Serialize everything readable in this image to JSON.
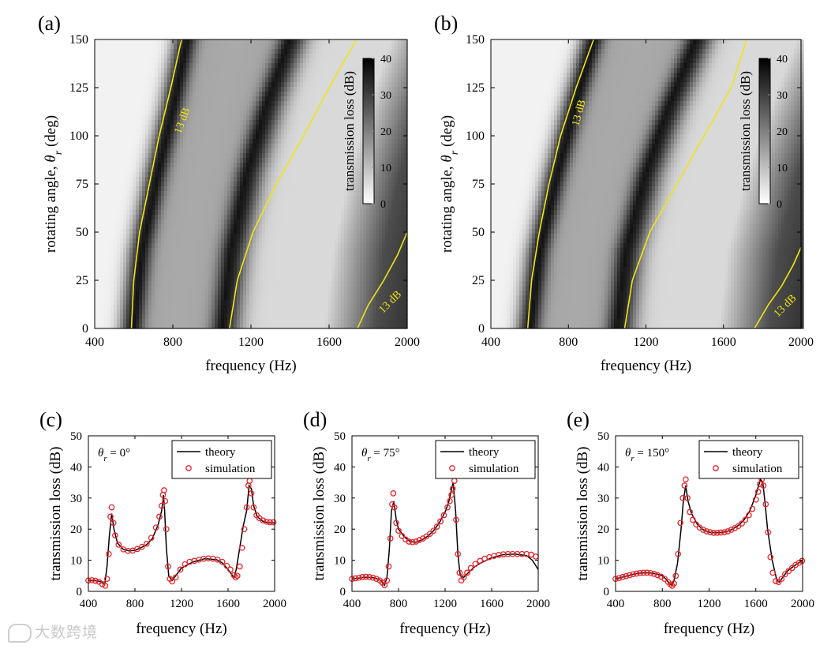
{
  "chart_data": [
    {
      "id": "a",
      "panel_label": "(a)",
      "type": "heatmap",
      "xlabel": "frequency (Hz)",
      "ylabel": "rotating angle, θr (deg)",
      "xlim": [
        400,
        2000
      ],
      "ylim": [
        0,
        150
      ],
      "xticks": [
        400,
        800,
        1200,
        1600,
        2000
      ],
      "yticks": [
        0,
        25,
        50,
        75,
        100,
        125,
        150
      ],
      "colorbar": {
        "label": "transmission loss (dB)",
        "ticks": [
          0,
          10,
          20,
          30,
          40
        ],
        "range": [
          0,
          40
        ],
        "colormap": "gray_reversed"
      },
      "ridge_lines": [
        {
          "name": "peak-1",
          "points": [
            [
              595,
              0
            ],
            [
              640,
              40
            ],
            [
              720,
              80
            ],
            [
              800,
              115
            ],
            [
              870,
              150
            ]
          ]
        },
        {
          "name": "peak-2",
          "points": [
            [
              1055,
              0
            ],
            [
              1100,
              40
            ],
            [
              1180,
              80
            ],
            [
              1280,
              115
            ],
            [
              1400,
              150
            ]
          ]
        }
      ],
      "contour_label": "13 dB",
      "contours_13dB": [
        {
          "label_at": [
            845,
            108
          ],
          "label_rotation": -70,
          "points": [
            [
              588,
              0
            ],
            [
              600,
              25
            ],
            [
              630,
              50
            ],
            [
              680,
              75
            ],
            [
              730,
              100
            ],
            [
              790,
              125
            ],
            [
              845,
              150
            ]
          ]
        },
        {
          "label_at": null,
          "points": [
            [
              1090,
              0
            ],
            [
              1130,
              25
            ],
            [
              1210,
              50
            ],
            [
              1330,
              75
            ],
            [
              1470,
              100
            ],
            [
              1600,
              125
            ],
            [
              1740,
              150
            ]
          ]
        },
        {
          "label_at": [
            1910,
            14
          ],
          "label_rotation": -45,
          "points": [
            [
              1745,
              0
            ],
            [
              1800,
              12
            ],
            [
              1880,
              25
            ],
            [
              1950,
              38
            ],
            [
              2000,
              50
            ]
          ]
        }
      ]
    },
    {
      "id": "b",
      "panel_label": "(b)",
      "type": "heatmap",
      "xlabel": "frequency (Hz)",
      "ylabel": "rotating angle, θr (deg)",
      "xlim": [
        400,
        2000
      ],
      "ylim": [
        0,
        150
      ],
      "xticks": [
        400,
        800,
        1200,
        1600,
        2000
      ],
      "yticks": [
        0,
        25,
        50,
        75,
        100,
        125,
        150
      ],
      "colorbar": {
        "label": "transmission loss (dB)",
        "ticks": [
          0,
          10,
          20,
          30,
          40
        ],
        "range": [
          0,
          40
        ],
        "colormap": "gray_reversed"
      },
      "ridge_lines": [
        {
          "name": "peak-1",
          "points": [
            [
              600,
              0
            ],
            [
              650,
              40
            ],
            [
              740,
              80
            ],
            [
              830,
              115
            ],
            [
              930,
              150
            ]
          ]
        },
        {
          "name": "peak-2",
          "points": [
            [
              1055,
              0
            ],
            [
              1100,
              40
            ],
            [
              1200,
              80
            ],
            [
              1320,
              115
            ],
            [
              1460,
              150
            ]
          ]
        }
      ],
      "contour_label": "13 dB",
      "contours_13dB": [
        {
          "label_at": [
            850,
            112
          ],
          "label_rotation": -75,
          "points": [
            [
              590,
              0
            ],
            [
              610,
              25
            ],
            [
              650,
              50
            ],
            [
              700,
              75
            ],
            [
              760,
              100
            ],
            [
              840,
              125
            ],
            [
              930,
              150
            ]
          ]
        },
        {
          "label_at": null,
          "points": [
            [
              1090,
              0
            ],
            [
              1130,
              25
            ],
            [
              1220,
              50
            ],
            [
              1360,
              75
            ],
            [
              1500,
              100
            ],
            [
              1640,
              125
            ],
            [
              1720,
              150
            ]
          ]
        },
        {
          "label_at": [
            1915,
            12
          ],
          "label_rotation": -45,
          "points": [
            [
              1760,
              0
            ],
            [
              1830,
              12
            ],
            [
              1900,
              22
            ],
            [
              1960,
              33
            ],
            [
              2000,
              42
            ]
          ]
        }
      ]
    },
    {
      "id": "c",
      "panel_label": "(c)",
      "type": "line",
      "annotation": "θr = 0°",
      "xlabel": "frequency (Hz)",
      "ylabel": "transmission loss (dB)",
      "xlim": [
        400,
        2000
      ],
      "ylim": [
        0,
        50
      ],
      "xticks": [
        400,
        800,
        1200,
        1600,
        2000
      ],
      "yticks": [
        0,
        10,
        20,
        30,
        40,
        50
      ],
      "legend": {
        "placement": "top-right",
        "entries": [
          "theory",
          "simulation"
        ]
      },
      "series": [
        {
          "name": "theory",
          "style": "line",
          "x": [
            400,
            450,
            500,
            540,
            560,
            580,
            600,
            620,
            650,
            700,
            750,
            800,
            850,
            900,
            950,
            1000,
            1030,
            1045,
            1055,
            1070,
            1090,
            1120,
            1150,
            1200,
            1300,
            1400,
            1500,
            1550,
            1600,
            1630,
            1650,
            1670,
            1700,
            1730,
            1760,
            1780,
            1800,
            1820,
            1850,
            1900,
            1950,
            2000
          ],
          "y": [
            3.5,
            3.5,
            3.2,
            2.2,
            8,
            18,
            25,
            20,
            15.5,
            13.5,
            13,
            13.2,
            14,
            15,
            17,
            21.5,
            26,
            31,
            26,
            14,
            5,
            3.5,
            5,
            7.5,
            9.5,
            10.5,
            10.2,
            9.2,
            7,
            5.5,
            4.5,
            7,
            14,
            21,
            26,
            34,
            33,
            27.5,
            24,
            22.5,
            22,
            22
          ]
        },
        {
          "name": "simulation",
          "style": "markers",
          "x": [
            400,
            430,
            460,
            490,
            520,
            545,
            560,
            575,
            590,
            600,
            615,
            630,
            660,
            700,
            740,
            780,
            820,
            860,
            900,
            940,
            980,
            1010,
            1030,
            1040,
            1050,
            1060,
            1070,
            1085,
            1100,
            1120,
            1150,
            1190,
            1230,
            1270,
            1310,
            1350,
            1390,
            1430,
            1470,
            1510,
            1550,
            1590,
            1620,
            1650,
            1665,
            1680,
            1700,
            1720,
            1740,
            1760,
            1775,
            1785,
            1800,
            1820,
            1845,
            1870,
            1900,
            1930,
            1960,
            1990
          ],
          "y": [
            3.5,
            3.6,
            3.4,
            3.1,
            2.3,
            1.8,
            4,
            12,
            24,
            27,
            22,
            18,
            15,
            13.5,
            13,
            13.1,
            13.6,
            14.3,
            15.3,
            17.2,
            20.5,
            24,
            27.5,
            31,
            32.5,
            29,
            20,
            8,
            4,
            3.2,
            4.5,
            7,
            8.7,
            9.5,
            9.8,
            10.2,
            10.5,
            10.6,
            10.5,
            10.2,
            9.5,
            8.2,
            7,
            5.2,
            4.5,
            5,
            8,
            14,
            20,
            27,
            34,
            35.5,
            31.5,
            27,
            24.5,
            23.5,
            22.8,
            22.4,
            22.2,
            22.2
          ]
        }
      ]
    },
    {
      "id": "d",
      "panel_label": "(d)",
      "type": "line",
      "annotation": "θr = 75°",
      "xlabel": "frequency (Hz)",
      "ylabel": "transmission loss (dB)",
      "xlim": [
        400,
        2000
      ],
      "ylim": [
        0,
        50
      ],
      "xticks": [
        400,
        800,
        1200,
        1600,
        2000
      ],
      "yticks": [
        0,
        10,
        20,
        30,
        40,
        50
      ],
      "legend": {
        "placement": "top-right",
        "entries": [
          "theory",
          "simulation"
        ]
      },
      "series": [
        {
          "name": "theory",
          "style": "line",
          "x": [
            400,
            450,
            500,
            550,
            600,
            650,
            680,
            700,
            720,
            740,
            760,
            780,
            800,
            850,
            900,
            950,
            1000,
            1050,
            1100,
            1150,
            1200,
            1230,
            1250,
            1270,
            1290,
            1310,
            1330,
            1360,
            1400,
            1450,
            1500,
            1600,
            1700,
            1800,
            1900,
            1950,
            2000
          ],
          "y": [
            4,
            4.2,
            4.5,
            4.5,
            4.3,
            3.5,
            2,
            4.5,
            13,
            26,
            29,
            23,
            20,
            17.5,
            16,
            15.8,
            16.5,
            17.7,
            19.5,
            22,
            25.5,
            28.5,
            32,
            35,
            26,
            12,
            5,
            4.5,
            6,
            7.8,
            9,
            10.8,
            11.8,
            12,
            11.5,
            10,
            7
          ]
        },
        {
          "name": "simulation",
          "style": "markers",
          "x": [
            400,
            430,
            460,
            490,
            520,
            550,
            580,
            610,
            640,
            660,
            680,
            700,
            715,
            730,
            745,
            755,
            765,
            780,
            800,
            830,
            860,
            890,
            920,
            950,
            980,
            1010,
            1040,
            1070,
            1100,
            1130,
            1160,
            1190,
            1220,
            1240,
            1255,
            1265,
            1280,
            1295,
            1310,
            1325,
            1340,
            1360,
            1390,
            1420,
            1460,
            1500,
            1540,
            1580,
            1620,
            1660,
            1700,
            1740,
            1780,
            1820,
            1860,
            1900,
            1940,
            1980
          ],
          "y": [
            4,
            4.2,
            4.4,
            4.6,
            4.7,
            4.6,
            4.4,
            4,
            3.5,
            2.8,
            2,
            3.5,
            8,
            17,
            28,
            31.5,
            27,
            22,
            19.5,
            17.8,
            16.7,
            16,
            15.8,
            16,
            16.5,
            17,
            17.7,
            18.5,
            19.5,
            20.8,
            22.5,
            24.5,
            27,
            29,
            31,
            33,
            35.5,
            23,
            12,
            6,
            3.5,
            4.5,
            6,
            7.5,
            8.8,
            9.8,
            10.5,
            11,
            11.4,
            11.7,
            11.9,
            12,
            12,
            12,
            12,
            12,
            11.8,
            11.2
          ]
        }
      ]
    },
    {
      "id": "e",
      "panel_label": "(e)",
      "type": "line",
      "annotation": "θr = 150°",
      "xlabel": "frequency (Hz)",
      "ylabel": "transmission loss (dB)",
      "xlim": [
        400,
        2000
      ],
      "ylim": [
        0,
        50
      ],
      "xticks": [
        400,
        800,
        1200,
        1600,
        2000
      ],
      "yticks": [
        0,
        10,
        20,
        30,
        40,
        50
      ],
      "legend": {
        "placement": "top-right",
        "entries": [
          "theory",
          "simulation"
        ]
      },
      "series": [
        {
          "name": "theory",
          "style": "line",
          "x": [
            400,
            450,
            500,
            550,
            600,
            650,
            700,
            750,
            800,
            830,
            860,
            880,
            900,
            930,
            960,
            980,
            1000,
            1020,
            1050,
            1100,
            1150,
            1200,
            1250,
            1300,
            1350,
            1400,
            1450,
            1500,
            1550,
            1600,
            1620,
            1640,
            1660,
            1680,
            1700,
            1740,
            1780,
            1800,
            1830,
            1870,
            1920,
            1960,
            2000
          ],
          "y": [
            4,
            4.5,
            5,
            5.5,
            5.8,
            6,
            5.9,
            5.6,
            5,
            4,
            2.5,
            2,
            3.5,
            9,
            20,
            29,
            34,
            29,
            25,
            21.5,
            19.8,
            19,
            18.8,
            18.9,
            19.2,
            20,
            21.2,
            23,
            26,
            31,
            33.5,
            36,
            35,
            28,
            20,
            10,
            3.5,
            3,
            4.5,
            6.5,
            8,
            9,
            9.8
          ]
        },
        {
          "name": "simulation",
          "style": "markers",
          "x": [
            400,
            430,
            460,
            490,
            520,
            550,
            580,
            610,
            640,
            670,
            700,
            730,
            760,
            790,
            820,
            850,
            870,
            885,
            900,
            915,
            935,
            955,
            975,
            990,
            1000,
            1015,
            1035,
            1060,
            1090,
            1120,
            1150,
            1180,
            1210,
            1240,
            1270,
            1300,
            1330,
            1360,
            1390,
            1420,
            1450,
            1480,
            1510,
            1540,
            1570,
            1600,
            1620,
            1635,
            1650,
            1665,
            1685,
            1705,
            1725,
            1745,
            1770,
            1795,
            1820,
            1850,
            1880,
            1910,
            1940,
            1970,
            1995
          ],
          "y": [
            4,
            4.3,
            4.6,
            4.9,
            5.2,
            5.5,
            5.7,
            5.9,
            6,
            6,
            5.9,
            5.6,
            5.2,
            4.7,
            4,
            3,
            2.2,
            1.8,
            2.5,
            5,
            12,
            22,
            30,
            34,
            36,
            30,
            25.5,
            23,
            21.5,
            20.5,
            19.8,
            19.3,
            19,
            18.8,
            18.8,
            18.9,
            19,
            19.3,
            19.8,
            20.3,
            21,
            21.8,
            23,
            24.5,
            26.5,
            29.5,
            32,
            34.5,
            36,
            34,
            28,
            19,
            11,
            6,
            3.3,
            3,
            4,
            5.5,
            6.5,
            7.5,
            8.5,
            9.2,
            9.8
          ]
        }
      ]
    }
  ],
  "colors": {
    "theory": "#000000",
    "simulation": "#e8242a",
    "contour": "#f0e414",
    "axis": "#000000"
  },
  "watermark": {
    "text": "大数跨境"
  }
}
